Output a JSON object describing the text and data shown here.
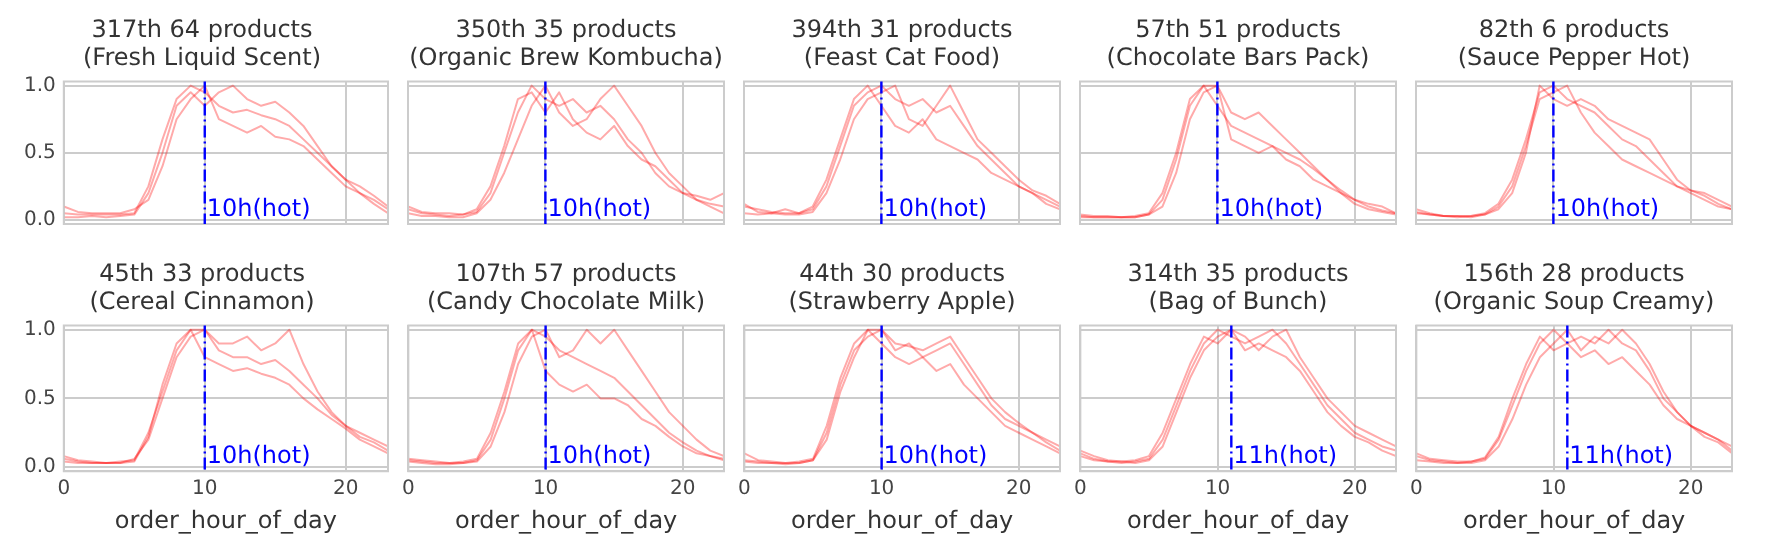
{
  "chart_data": [
    {
      "type": "line",
      "title": "317th 64 products",
      "subtitle": "(Fresh Liquid Scent)",
      "x": [
        0,
        1,
        2,
        3,
        4,
        5,
        6,
        7,
        8,
        9,
        10,
        11,
        12,
        13,
        14,
        15,
        16,
        17,
        18,
        19,
        20,
        21,
        22,
        23
      ],
      "xlim": [
        0,
        23
      ],
      "xticks": [
        {
          "value": 0,
          "label": null
        },
        {
          "value": 10,
          "label": null
        },
        {
          "value": 20,
          "label": null
        }
      ],
      "ylim": [
        -0.03,
        1.03
      ],
      "yticks": [
        {
          "value": 0,
          "label": "0.0"
        },
        {
          "value": 0.5,
          "label": "0.5"
        },
        {
          "value": 1,
          "label": "1.0"
        }
      ],
      "grid": true,
      "legend": false,
      "marker": "none",
      "tick_labels": "y",
      "ref_lines": [
        {
          "axis": "x",
          "value": 10,
          "label": "10h(hot)",
          "color": "#0000ff",
          "line_style": "dashed"
        }
      ],
      "series": [
        {
          "color": "#ff0000",
          "values": [
            0.05,
            0.04,
            0.04,
            0.04,
            0.04,
            0.05,
            0.25,
            0.6,
            0.9,
            1.0,
            0.95,
            0.85,
            0.8,
            0.82,
            0.78,
            0.75,
            0.7,
            0.6,
            0.5,
            0.4,
            0.3,
            0.25,
            0.18,
            0.1
          ]
        },
        {
          "color": "#ff0000",
          "values": [
            0.1,
            0.06,
            0.05,
            0.05,
            0.05,
            0.08,
            0.15,
            0.4,
            0.75,
            0.9,
            1.0,
            0.75,
            0.7,
            0.65,
            0.7,
            0.62,
            0.6,
            0.55,
            0.45,
            0.35,
            0.25,
            0.2,
            0.15,
            0.08
          ]
        },
        {
          "color": "#ff0000",
          "values": [
            0.02,
            0.02,
            0.03,
            0.02,
            0.03,
            0.04,
            0.2,
            0.5,
            0.85,
            0.95,
            0.85,
            0.95,
            1.0,
            0.9,
            0.85,
            0.88,
            0.8,
            0.7,
            0.55,
            0.4,
            0.3,
            0.2,
            0.12,
            0.05
          ]
        }
      ]
    },
    {
      "type": "line",
      "title": "350th 35 products",
      "subtitle": "(Organic Brew Kombucha)",
      "x": [
        0,
        1,
        2,
        3,
        4,
        5,
        6,
        7,
        8,
        9,
        10,
        11,
        12,
        13,
        14,
        15,
        16,
        17,
        18,
        19,
        20,
        21,
        22,
        23
      ],
      "xlim": [
        0,
        23
      ],
      "xticks": [
        {
          "value": 0,
          "label": null
        },
        {
          "value": 10,
          "label": null
        },
        {
          "value": 20,
          "label": null
        }
      ],
      "ylim": [
        -0.03,
        1.03
      ],
      "yticks": [
        {
          "value": 0,
          "label": null
        },
        {
          "value": 0.5,
          "label": null
        },
        {
          "value": 1,
          "label": null
        }
      ],
      "grid": true,
      "legend": false,
      "marker": "none",
      "tick_labels": false,
      "ref_lines": [
        {
          "axis": "x",
          "value": 10,
          "label": "10h(hot)",
          "color": "#0000ff",
          "line_style": "dashed"
        }
      ],
      "series": [
        {
          "color": "#ff0000",
          "values": [
            0.08,
            0.05,
            0.04,
            0.03,
            0.04,
            0.06,
            0.2,
            0.5,
            0.8,
            1.0,
            0.9,
            0.85,
            0.9,
            0.8,
            0.85,
            0.75,
            0.6,
            0.5,
            0.35,
            0.25,
            0.2,
            0.15,
            0.12,
            0.1
          ]
        },
        {
          "color": "#ff0000",
          "values": [
            0.05,
            0.03,
            0.03,
            0.02,
            0.02,
            0.05,
            0.15,
            0.35,
            0.6,
            0.85,
            1.0,
            0.8,
            0.7,
            0.75,
            0.9,
            1.0,
            0.85,
            0.7,
            0.5,
            0.35,
            0.25,
            0.15,
            0.1,
            0.05
          ]
        },
        {
          "color": "#ff0000",
          "values": [
            0.1,
            0.06,
            0.05,
            0.05,
            0.04,
            0.08,
            0.25,
            0.55,
            0.9,
            0.95,
            0.8,
            0.95,
            0.75,
            0.65,
            0.6,
            0.7,
            0.55,
            0.45,
            0.4,
            0.3,
            0.2,
            0.18,
            0.15,
            0.2
          ]
        }
      ]
    },
    {
      "type": "line",
      "title": "394th 31 products",
      "subtitle": "(Feast Cat Food)",
      "x": [
        0,
        1,
        2,
        3,
        4,
        5,
        6,
        7,
        8,
        9,
        10,
        11,
        12,
        13,
        14,
        15,
        16,
        17,
        18,
        19,
        20,
        21,
        22,
        23
      ],
      "xlim": [
        0,
        23
      ],
      "xticks": [
        {
          "value": 0,
          "label": null
        },
        {
          "value": 10,
          "label": null
        },
        {
          "value": 20,
          "label": null
        }
      ],
      "ylim": [
        -0.03,
        1.03
      ],
      "yticks": [
        {
          "value": 0,
          "label": null
        },
        {
          "value": 0.5,
          "label": null
        },
        {
          "value": 1,
          "label": null
        }
      ],
      "grid": true,
      "legend": false,
      "marker": "none",
      "tick_labels": false,
      "ref_lines": [
        {
          "axis": "x",
          "value": 10,
          "label": "10h(hot)",
          "color": "#0000ff",
          "line_style": "dashed"
        }
      ],
      "series": [
        {
          "color": "#ff0000",
          "values": [
            0.1,
            0.08,
            0.06,
            0.05,
            0.05,
            0.08,
            0.25,
            0.55,
            0.85,
            0.95,
            1.0,
            0.9,
            0.85,
            0.9,
            0.8,
            0.85,
            0.7,
            0.55,
            0.45,
            0.35,
            0.25,
            0.2,
            0.15,
            0.1
          ]
        },
        {
          "color": "#ff0000",
          "values": [
            0.05,
            0.04,
            0.05,
            0.04,
            0.04,
            0.06,
            0.2,
            0.45,
            0.75,
            0.9,
            0.95,
            1.0,
            0.75,
            0.7,
            0.85,
            1.0,
            0.8,
            0.6,
            0.5,
            0.4,
            0.3,
            0.22,
            0.18,
            0.12
          ]
        },
        {
          "color": "#ff0000",
          "values": [
            0.12,
            0.06,
            0.05,
            0.08,
            0.05,
            0.1,
            0.3,
            0.6,
            0.9,
            1.0,
            0.85,
            0.7,
            0.65,
            0.75,
            0.6,
            0.55,
            0.5,
            0.45,
            0.35,
            0.3,
            0.25,
            0.2,
            0.12,
            0.08
          ]
        }
      ]
    },
    {
      "type": "line",
      "title": "57th 51 products",
      "subtitle": "(Chocolate Bars Pack)",
      "x": [
        0,
        1,
        2,
        3,
        4,
        5,
        6,
        7,
        8,
        9,
        10,
        11,
        12,
        13,
        14,
        15,
        16,
        17,
        18,
        19,
        20,
        21,
        22,
        23
      ],
      "xlim": [
        0,
        23
      ],
      "xticks": [
        {
          "value": 0,
          "label": null
        },
        {
          "value": 10,
          "label": null
        },
        {
          "value": 20,
          "label": null
        }
      ],
      "ylim": [
        -0.03,
        1.03
      ],
      "yticks": [
        {
          "value": 0,
          "label": null
        },
        {
          "value": 0.5,
          "label": null
        },
        {
          "value": 1,
          "label": null
        }
      ],
      "grid": true,
      "legend": false,
      "marker": "none",
      "tick_labels": false,
      "ref_lines": [
        {
          "axis": "x",
          "value": 10,
          "label": "10h(hot)",
          "color": "#0000ff",
          "line_style": "dashed"
        }
      ],
      "series": [
        {
          "color": "#ff0000",
          "values": [
            0.02,
            0.02,
            0.02,
            0.02,
            0.02,
            0.04,
            0.15,
            0.45,
            0.85,
            1.0,
            0.85,
            0.7,
            0.65,
            0.6,
            0.55,
            0.5,
            0.45,
            0.38,
            0.3,
            0.22,
            0.15,
            0.1,
            0.07,
            0.05
          ]
        },
        {
          "color": "#ff0000",
          "values": [
            0.03,
            0.02,
            0.02,
            0.02,
            0.03,
            0.05,
            0.2,
            0.5,
            0.9,
            1.0,
            1.0,
            0.8,
            0.75,
            0.8,
            0.7,
            0.6,
            0.5,
            0.4,
            0.3,
            0.2,
            0.15,
            0.12,
            0.1,
            0.05
          ]
        },
        {
          "color": "#ff0000",
          "values": [
            0.04,
            0.03,
            0.03,
            0.02,
            0.02,
            0.04,
            0.1,
            0.35,
            0.75,
            0.95,
            1.0,
            0.6,
            0.55,
            0.5,
            0.55,
            0.45,
            0.4,
            0.3,
            0.25,
            0.2,
            0.12,
            0.08,
            0.06,
            0.04
          ]
        }
      ]
    },
    {
      "type": "line",
      "title": "82th 6 products",
      "subtitle": "(Sauce Pepper Hot)",
      "x": [
        0,
        1,
        2,
        3,
        4,
        5,
        6,
        7,
        8,
        9,
        10,
        11,
        12,
        13,
        14,
        15,
        16,
        17,
        18,
        19,
        20,
        21,
        22,
        23
      ],
      "xlim": [
        0,
        23
      ],
      "xticks": [
        {
          "value": 0,
          "label": null
        },
        {
          "value": 10,
          "label": null
        },
        {
          "value": 20,
          "label": null
        }
      ],
      "ylim": [
        -0.03,
        1.03
      ],
      "yticks": [
        {
          "value": 0,
          "label": null
        },
        {
          "value": 0.5,
          "label": null
        },
        {
          "value": 1,
          "label": null
        }
      ],
      "grid": true,
      "legend": false,
      "marker": "none",
      "tick_labels": false,
      "ref_lines": [
        {
          "axis": "x",
          "value": 10,
          "label": "10h(hot)",
          "color": "#0000ff",
          "line_style": "dashed"
        }
      ],
      "series": [
        {
          "color": "#ff0000",
          "values": [
            0.08,
            0.05,
            0.03,
            0.02,
            0.03,
            0.05,
            0.12,
            0.3,
            0.6,
            0.95,
            1.0,
            0.9,
            0.85,
            0.8,
            0.7,
            0.6,
            0.55,
            0.45,
            0.35,
            0.25,
            0.22,
            0.2,
            0.15,
            0.1
          ]
        },
        {
          "color": "#ff0000",
          "values": [
            0.05,
            0.04,
            0.03,
            0.03,
            0.02,
            0.04,
            0.1,
            0.25,
            0.55,
            0.9,
            0.95,
            1.0,
            0.8,
            0.65,
            0.55,
            0.45,
            0.4,
            0.35,
            0.3,
            0.25,
            0.2,
            0.15,
            0.1,
            0.08
          ]
        },
        {
          "color": "#ff0000",
          "values": [
            0.06,
            0.04,
            0.03,
            0.03,
            0.03,
            0.04,
            0.08,
            0.2,
            0.5,
            1.0,
            0.9,
            0.85,
            0.9,
            0.85,
            0.75,
            0.7,
            0.65,
            0.6,
            0.45,
            0.3,
            0.22,
            0.18,
            0.12,
            0.08
          ]
        }
      ]
    },
    {
      "type": "line",
      "title": "45th 33 products",
      "subtitle": "(Cereal Cinnamon)",
      "xlabel": "order_hour_of_day",
      "x": [
        0,
        1,
        2,
        3,
        4,
        5,
        6,
        7,
        8,
        9,
        10,
        11,
        12,
        13,
        14,
        15,
        16,
        17,
        18,
        19,
        20,
        21,
        22,
        23
      ],
      "xlim": [
        0,
        23
      ],
      "xticks": [
        0,
        10,
        20
      ],
      "ylim": [
        -0.03,
        1.03
      ],
      "yticks": [
        {
          "value": 0,
          "label": "0.0"
        },
        {
          "value": 0.5,
          "label": "0.5"
        },
        {
          "value": 1,
          "label": "1.0"
        }
      ],
      "grid": true,
      "legend": false,
      "marker": "none",
      "ref_lines": [
        {
          "axis": "x",
          "value": 10,
          "label": "10h(hot)",
          "color": "#0000ff",
          "line_style": "dashed"
        }
      ],
      "series": [
        {
          "color": "#ff0000",
          "values": [
            0.06,
            0.04,
            0.03,
            0.03,
            0.04,
            0.05,
            0.25,
            0.55,
            0.85,
            1.0,
            1.0,
            0.85,
            0.8,
            0.8,
            0.75,
            0.78,
            0.7,
            0.6,
            0.5,
            0.38,
            0.3,
            0.22,
            0.18,
            0.12
          ]
        },
        {
          "color": "#ff0000",
          "values": [
            0.08,
            0.05,
            0.04,
            0.03,
            0.03,
            0.06,
            0.2,
            0.5,
            0.8,
            0.95,
            1.0,
            0.9,
            0.9,
            0.95,
            0.85,
            0.9,
            1.0,
            0.75,
            0.55,
            0.4,
            0.3,
            0.25,
            0.2,
            0.15
          ]
        },
        {
          "color": "#ff0000",
          "values": [
            0.04,
            0.03,
            0.03,
            0.03,
            0.03,
            0.04,
            0.22,
            0.6,
            0.9,
            1.0,
            0.8,
            0.75,
            0.7,
            0.72,
            0.68,
            0.65,
            0.6,
            0.5,
            0.42,
            0.35,
            0.28,
            0.2,
            0.15,
            0.1
          ]
        }
      ]
    },
    {
      "type": "line",
      "title": "107th 57 products",
      "subtitle": "(Candy Chocolate Milk)",
      "xlabel": "order_hour_of_day",
      "x": [
        0,
        1,
        2,
        3,
        4,
        5,
        6,
        7,
        8,
        9,
        10,
        11,
        12,
        13,
        14,
        15,
        16,
        17,
        18,
        19,
        20,
        21,
        22,
        23
      ],
      "xlim": [
        0,
        23
      ],
      "xticks": [
        0,
        10,
        20
      ],
      "ylim": [
        -0.03,
        1.03
      ],
      "yticks": [
        {
          "value": 0,
          "label": null
        },
        {
          "value": 0.5,
          "label": null
        },
        {
          "value": 1,
          "label": null
        }
      ],
      "grid": true,
      "legend": false,
      "marker": "none",
      "tick_labels": "x",
      "ref_lines": [
        {
          "axis": "x",
          "value": 10,
          "label": "10h(hot)",
          "color": "#0000ff",
          "line_style": "dashed"
        }
      ],
      "series": [
        {
          "color": "#ff0000",
          "values": [
            0.05,
            0.04,
            0.03,
            0.03,
            0.03,
            0.05,
            0.2,
            0.5,
            0.85,
            1.0,
            0.95,
            0.85,
            0.8,
            0.75,
            0.7,
            0.65,
            0.55,
            0.45,
            0.35,
            0.25,
            0.18,
            0.12,
            0.08,
            0.05
          ]
        },
        {
          "color": "#ff0000",
          "values": [
            0.04,
            0.03,
            0.02,
            0.02,
            0.03,
            0.04,
            0.15,
            0.4,
            0.75,
            0.95,
            1.0,
            0.8,
            0.85,
            1.0,
            0.9,
            1.0,
            0.85,
            0.7,
            0.55,
            0.4,
            0.3,
            0.2,
            0.12,
            0.08
          ]
        },
        {
          "color": "#ff0000",
          "values": [
            0.06,
            0.05,
            0.04,
            0.03,
            0.04,
            0.06,
            0.25,
            0.55,
            0.9,
            1.0,
            0.7,
            0.6,
            0.55,
            0.6,
            0.5,
            0.5,
            0.45,
            0.35,
            0.3,
            0.22,
            0.15,
            0.1,
            0.08,
            0.06
          ]
        }
      ]
    },
    {
      "type": "line",
      "title": "44th 30 products",
      "subtitle": "(Strawberry Apple)",
      "xlabel": "order_hour_of_day",
      "x": [
        0,
        1,
        2,
        3,
        4,
        5,
        6,
        7,
        8,
        9,
        10,
        11,
        12,
        13,
        14,
        15,
        16,
        17,
        18,
        19,
        20,
        21,
        22,
        23
      ],
      "xlim": [
        0,
        23
      ],
      "xticks": [
        0,
        10,
        20
      ],
      "ylim": [
        -0.03,
        1.03
      ],
      "yticks": [
        {
          "value": 0,
          "label": null
        },
        {
          "value": 0.5,
          "label": null
        },
        {
          "value": 1,
          "label": null
        }
      ],
      "grid": true,
      "legend": false,
      "marker": "none",
      "tick_labels": "x",
      "ref_lines": [
        {
          "axis": "x",
          "value": 10,
          "label": "10h(hot)",
          "color": "#0000ff",
          "line_style": "dashed"
        }
      ],
      "series": [
        {
          "color": "#ff0000",
          "values": [
            0.05,
            0.04,
            0.03,
            0.03,
            0.04,
            0.06,
            0.3,
            0.65,
            0.9,
            1.0,
            1.0,
            0.9,
            0.88,
            0.85,
            0.9,
            0.95,
            0.8,
            0.65,
            0.5,
            0.4,
            0.32,
            0.25,
            0.2,
            0.15
          ]
        },
        {
          "color": "#ff0000",
          "values": [
            0.1,
            0.05,
            0.04,
            0.03,
            0.03,
            0.05,
            0.25,
            0.6,
            0.85,
            0.95,
            1.0,
            0.85,
            0.9,
            0.8,
            0.85,
            0.9,
            0.75,
            0.6,
            0.45,
            0.35,
            0.3,
            0.25,
            0.18,
            0.12
          ]
        },
        {
          "color": "#ff0000",
          "values": [
            0.04,
            0.03,
            0.03,
            0.02,
            0.03,
            0.05,
            0.2,
            0.55,
            0.8,
            1.0,
            0.9,
            0.8,
            0.75,
            0.8,
            0.7,
            0.75,
            0.6,
            0.5,
            0.4,
            0.3,
            0.25,
            0.2,
            0.15,
            0.1
          ]
        }
      ]
    },
    {
      "type": "line",
      "title": "314th 35 products",
      "subtitle": "(Bag of Bunch)",
      "xlabel": "order_hour_of_day",
      "x": [
        0,
        1,
        2,
        3,
        4,
        5,
        6,
        7,
        8,
        9,
        10,
        11,
        12,
        13,
        14,
        15,
        16,
        17,
        18,
        19,
        20,
        21,
        22,
        23
      ],
      "xlim": [
        0,
        23
      ],
      "xticks": [
        0,
        10,
        20
      ],
      "ylim": [
        -0.03,
        1.03
      ],
      "yticks": [
        {
          "value": 0,
          "label": null
        },
        {
          "value": 0.5,
          "label": null
        },
        {
          "value": 1,
          "label": null
        }
      ],
      "grid": true,
      "legend": false,
      "marker": "none",
      "tick_labels": "x",
      "ref_lines": [
        {
          "axis": "x",
          "value": 11,
          "label": "11h(hot)",
          "color": "#0000ff",
          "line_style": "dashed"
        }
      ],
      "series": [
        {
          "color": "#ff0000",
          "values": [
            0.1,
            0.06,
            0.04,
            0.03,
            0.04,
            0.06,
            0.2,
            0.45,
            0.7,
            0.9,
            1.0,
            0.95,
            0.9,
            0.95,
            1.0,
            0.9,
            0.75,
            0.6,
            0.45,
            0.35,
            0.25,
            0.2,
            0.15,
            0.12
          ]
        },
        {
          "color": "#ff0000",
          "values": [
            0.08,
            0.05,
            0.04,
            0.04,
            0.03,
            0.05,
            0.15,
            0.4,
            0.65,
            0.85,
            0.95,
            1.0,
            0.85,
            0.9,
            0.85,
            0.8,
            0.7,
            0.55,
            0.4,
            0.3,
            0.22,
            0.18,
            0.12,
            0.08
          ]
        },
        {
          "color": "#ff0000",
          "values": [
            0.12,
            0.08,
            0.05,
            0.04,
            0.05,
            0.08,
            0.25,
            0.5,
            0.75,
            0.95,
            0.9,
            1.0,
            0.95,
            0.85,
            0.95,
            1.0,
            0.8,
            0.65,
            0.5,
            0.4,
            0.3,
            0.25,
            0.2,
            0.15
          ]
        }
      ]
    },
    {
      "type": "line",
      "title": "156th 28 products",
      "subtitle": "(Organic Soup Creamy)",
      "xlabel": "order_hour_of_day",
      "x": [
        0,
        1,
        2,
        3,
        4,
        5,
        6,
        7,
        8,
        9,
        10,
        11,
        12,
        13,
        14,
        15,
        16,
        17,
        18,
        19,
        20,
        21,
        22,
        23
      ],
      "xlim": [
        0,
        23
      ],
      "xticks": [
        0,
        10,
        20
      ],
      "ylim": [
        -0.03,
        1.03
      ],
      "yticks": [
        {
          "value": 0,
          "label": null
        },
        {
          "value": 0.5,
          "label": null
        },
        {
          "value": 1,
          "label": null
        }
      ],
      "grid": true,
      "legend": false,
      "marker": "none",
      "tick_labels": "x",
      "ref_lines": [
        {
          "axis": "x",
          "value": 11,
          "label": "11h(hot)",
          "color": "#0000ff",
          "line_style": "dashed"
        }
      ],
      "series": [
        {
          "color": "#ff0000",
          "values": [
            0.08,
            0.05,
            0.04,
            0.03,
            0.04,
            0.06,
            0.2,
            0.45,
            0.7,
            0.9,
            1.0,
            0.9,
            0.95,
            0.9,
            1.0,
            0.9,
            0.85,
            0.7,
            0.5,
            0.4,
            0.3,
            0.25,
            0.2,
            0.12
          ]
        },
        {
          "color": "#ff0000",
          "values": [
            0.05,
            0.04,
            0.03,
            0.03,
            0.03,
            0.05,
            0.15,
            0.35,
            0.6,
            0.8,
            0.9,
            1.0,
            0.85,
            0.95,
            0.9,
            1.0,
            0.9,
            0.75,
            0.55,
            0.4,
            0.3,
            0.22,
            0.18,
            0.1
          ]
        },
        {
          "color": "#ff0000",
          "values": [
            0.1,
            0.06,
            0.05,
            0.04,
            0.04,
            0.07,
            0.22,
            0.5,
            0.75,
            0.95,
            0.85,
            0.9,
            0.8,
            0.85,
            0.75,
            0.8,
            0.7,
            0.6,
            0.45,
            0.35,
            0.3,
            0.25,
            0.2,
            0.15
          ]
        }
      ]
    }
  ]
}
